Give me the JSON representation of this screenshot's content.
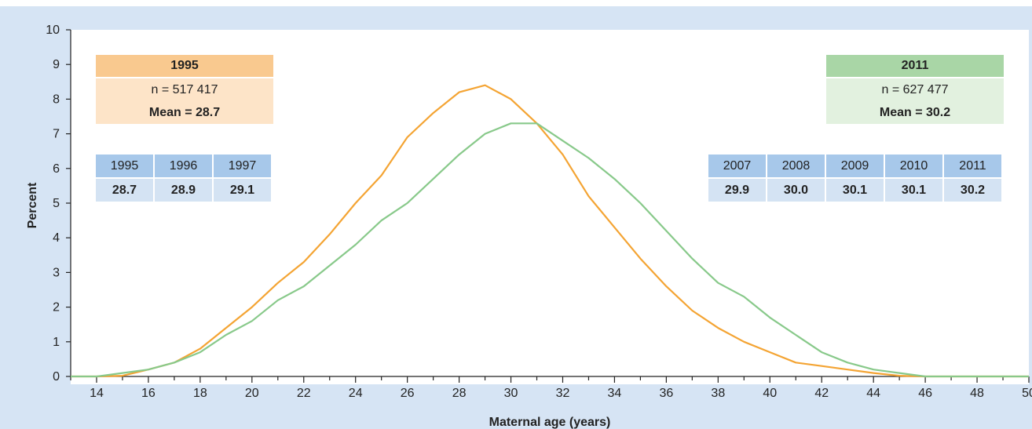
{
  "chart_data": {
    "type": "line",
    "xlabel": "Maternal age (years)",
    "ylabel": "Percent",
    "xlim": [
      13,
      50
    ],
    "ylim": [
      0,
      10
    ],
    "xticks": [
      14,
      16,
      18,
      20,
      22,
      24,
      26,
      28,
      30,
      32,
      34,
      36,
      38,
      40,
      42,
      44,
      46,
      48,
      50
    ],
    "yticks": [
      0,
      1,
      2,
      3,
      4,
      5,
      6,
      7,
      8,
      9,
      10
    ],
    "grid": false,
    "x": [
      13,
      14,
      15,
      16,
      17,
      18,
      19,
      20,
      21,
      22,
      23,
      24,
      25,
      26,
      27,
      28,
      29,
      30,
      31,
      32,
      33,
      34,
      35,
      36,
      37,
      38,
      39,
      40,
      41,
      42,
      43,
      44,
      45,
      46,
      47,
      48,
      49,
      50
    ],
    "series": [
      {
        "color": "#f4a433",
        "values": [
          0,
          0,
          0.02,
          0.2,
          0.4,
          0.8,
          1.4,
          2.0,
          2.7,
          3.3,
          4.1,
          5.0,
          5.8,
          6.9,
          7.6,
          8.2,
          8.4,
          8.0,
          7.3,
          6.4,
          5.2,
          4.3,
          3.4,
          2.6,
          1.9,
          1.4,
          1.0,
          0.7,
          0.4,
          0.3,
          0.2,
          0.1,
          0.02,
          0,
          0,
          0,
          0,
          0
        ]
      },
      {
        "color": "#88c98a",
        "values": [
          0,
          0,
          0.1,
          0.2,
          0.4,
          0.7,
          1.2,
          1.6,
          2.2,
          2.6,
          3.2,
          3.8,
          4.5,
          5.0,
          5.7,
          6.4,
          7.0,
          7.3,
          7.3,
          6.8,
          6.3,
          5.7,
          5.0,
          4.2,
          3.4,
          2.7,
          2.3,
          1.7,
          1.2,
          0.7,
          0.4,
          0.2,
          0.1,
          0,
          0,
          0,
          0,
          0
        ]
      }
    ]
  },
  "summary_boxes": {
    "y1995": {
      "year": "1995",
      "n": "n = 517 417",
      "mean": "Mean = 28.7"
    },
    "y2011": {
      "year": "2011",
      "n": "n = 627 477",
      "mean": "Mean = 30.2"
    }
  },
  "mean_tables": {
    "left": {
      "years": [
        "1995",
        "1996",
        "1997"
      ],
      "means": [
        "28.7",
        "28.9",
        "29.1"
      ]
    },
    "right": {
      "years": [
        "2007",
        "2008",
        "2009",
        "2010",
        "2011"
      ],
      "means": [
        "29.9",
        "30.0",
        "30.1",
        "30.1",
        "30.2"
      ]
    }
  }
}
